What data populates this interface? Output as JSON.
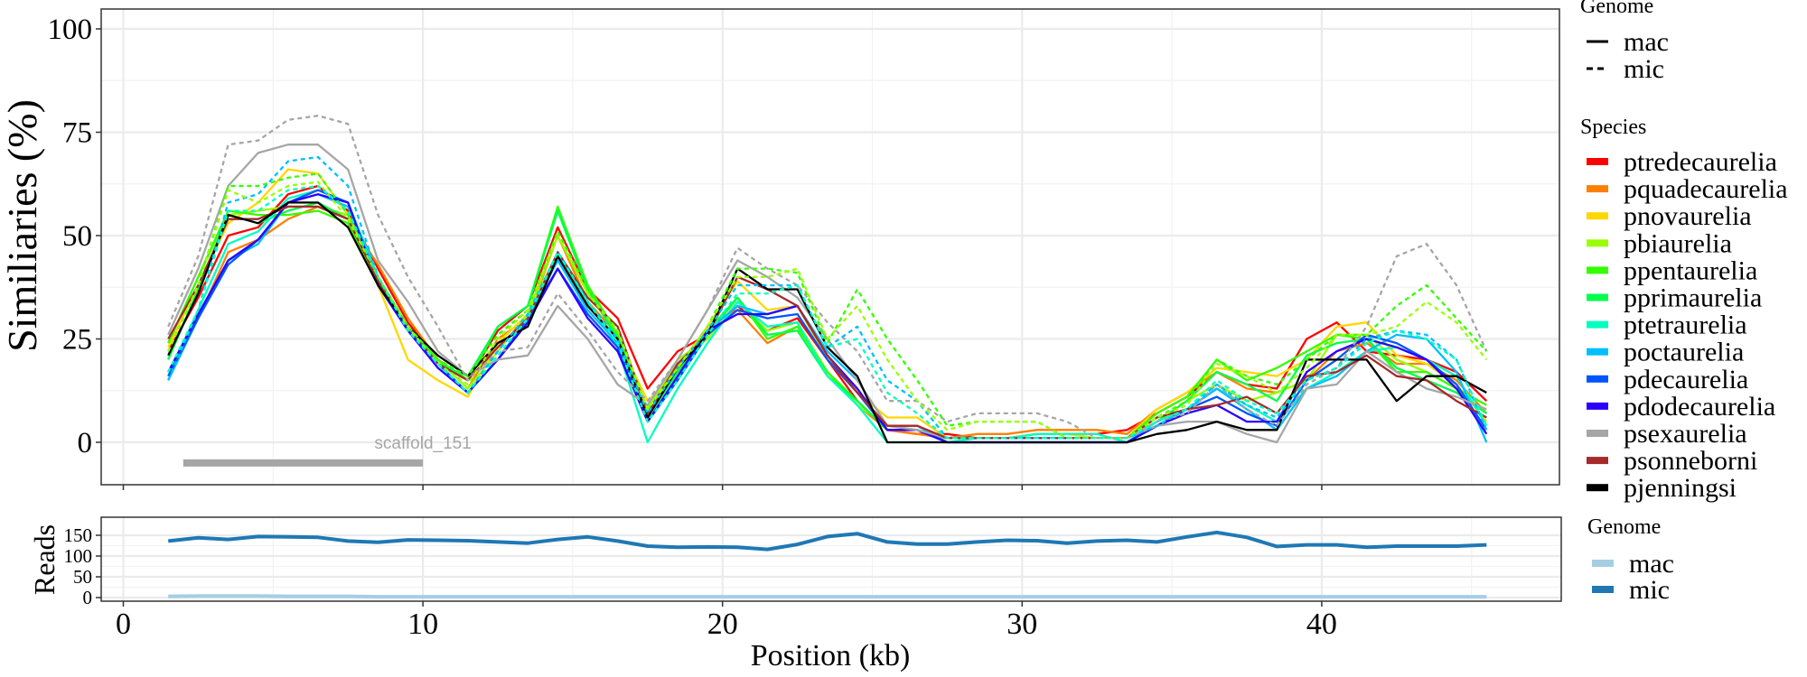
{
  "chart_data": [
    {
      "type": "line",
      "title": "",
      "xlabel": "Position (kb)",
      "ylabel": "Similiaries (%)",
      "xlim": [
        -1,
        48
      ],
      "ylim": [
        -10,
        105
      ],
      "x_ticks": [
        "0",
        "10",
        "20",
        "30",
        "40"
      ],
      "y_ticks": [
        "0",
        "25",
        "50",
        "75",
        "100"
      ],
      "grid": true,
      "x": [
        1.5,
        2.5,
        3.5,
        4.5,
        5.5,
        6.5,
        7.5,
        8.5,
        9.5,
        10.5,
        11.5,
        12.5,
        13.5,
        14.5,
        15.5,
        16.5,
        17.5,
        18.5,
        19.5,
        20.5,
        21.5,
        22.5,
        23.5,
        24.5,
        25.5,
        26.5,
        27.5,
        28.5,
        29.5,
        30.5,
        31.5,
        32.5,
        33.5,
        34.5,
        35.5,
        36.5,
        37.5,
        38.5,
        39.5,
        40.5,
        41.5,
        42.5,
        43.5,
        44.5,
        45.5
      ],
      "annotation": {
        "label": "scaffold_151",
        "start": 2,
        "end": 10,
        "y": -5
      },
      "legend_genome": {
        "title": "Genome",
        "items": [
          {
            "label": "mac",
            "style": "solid"
          },
          {
            "label": "mic",
            "style": "dashed"
          }
        ]
      },
      "legend_species": {
        "title": "Species",
        "placement": "right"
      },
      "series": [
        {
          "name": "ptredecaurelia",
          "color": "#FF0000",
          "genome": "mac",
          "values": [
            22,
            35,
            50,
            52,
            60,
            62,
            56,
            42,
            29,
            20,
            15,
            27,
            33,
            52,
            37,
            30,
            13,
            22,
            26,
            33,
            27,
            30,
            20,
            10,
            3,
            2,
            2,
            1,
            1,
            2,
            2,
            2,
            3,
            7,
            11,
            17,
            14,
            13,
            25,
            29,
            22,
            21,
            20,
            17,
            10
          ]
        },
        {
          "name": "pquadecaurelia",
          "color": "#FF7F00",
          "genome": "mac",
          "values": [
            17,
            30,
            46,
            49,
            54,
            57,
            54,
            43,
            30,
            20,
            13,
            25,
            30,
            50,
            34,
            26,
            8,
            18,
            28,
            32,
            24,
            28,
            17,
            9,
            3,
            2,
            1,
            2,
            2,
            3,
            3,
            3,
            2,
            8,
            12,
            17,
            13,
            12,
            15,
            22,
            24,
            19,
            19,
            15,
            7
          ]
        },
        {
          "name": "pnovaurelia",
          "color": "#FFD700",
          "genome": "mac",
          "values": [
            23,
            38,
            53,
            58,
            66,
            65,
            55,
            38,
            20,
            15,
            11,
            24,
            31,
            46,
            33,
            25,
            10,
            17,
            28,
            39,
            32,
            33,
            20,
            12,
            6,
            6,
            1,
            1,
            1,
            2,
            2,
            1,
            1,
            8,
            12,
            18,
            17,
            16,
            20,
            28,
            29,
            21,
            19,
            14,
            5
          ]
        },
        {
          "name": "pbiaurelia",
          "color": "#99FF00",
          "genome": "mac",
          "values": [
            24,
            40,
            55,
            56,
            57,
            57,
            55,
            40,
            28,
            20,
            13,
            22,
            31,
            50,
            36,
            26,
            8,
            20,
            25,
            34,
            27,
            29,
            17,
            9,
            4,
            3,
            1,
            1,
            1,
            1,
            1,
            1,
            1,
            5,
            10,
            14,
            10,
            12,
            15,
            26,
            26,
            20,
            17,
            13,
            7
          ]
        },
        {
          "name": "ppentaurelia",
          "color": "#33FF00",
          "genome": "mac",
          "values": [
            24,
            40,
            56,
            55,
            55,
            56,
            53,
            39,
            28,
            20,
            15,
            28,
            33,
            57,
            38,
            26,
            6,
            18,
            27,
            35,
            25,
            28,
            17,
            10,
            3,
            3,
            1,
            1,
            1,
            1,
            1,
            1,
            1,
            7,
            11,
            20,
            15,
            18,
            22,
            26,
            25,
            17,
            17,
            13,
            9
          ]
        },
        {
          "name": "pprimaurelia",
          "color": "#00FF4D",
          "genome": "mac",
          "values": [
            20,
            37,
            55,
            53,
            56,
            58,
            54,
            39,
            28,
            19,
            16,
            28,
            33,
            56,
            37,
            25,
            6,
            17,
            26,
            35,
            26,
            27,
            16,
            10,
            3,
            3,
            1,
            1,
            1,
            1,
            1,
            1,
            1,
            5,
            10,
            17,
            14,
            10,
            21,
            24,
            25,
            18,
            15,
            12,
            7
          ]
        },
        {
          "name": "ptetraurelia",
          "color": "#00FFC0",
          "genome": "mac",
          "values": [
            16,
            32,
            48,
            51,
            59,
            61,
            58,
            40,
            28,
            19,
            12,
            20,
            29,
            45,
            34,
            23,
            0,
            13,
            24,
            34,
            28,
            29,
            16,
            9,
            0,
            0,
            0,
            1,
            1,
            2,
            2,
            2,
            0,
            5,
            8,
            13,
            9,
            5,
            13,
            17,
            22,
            23,
            20,
            16,
            4
          ]
        },
        {
          "name": "poctaurelia",
          "color": "#00BFFF",
          "genome": "mac",
          "values": [
            15,
            30,
            44,
            48,
            58,
            60,
            57,
            40,
            27,
            19,
            12,
            20,
            30,
            44,
            32,
            24,
            5,
            15,
            27,
            33,
            31,
            33,
            22,
            15,
            4,
            4,
            0,
            0,
            0,
            0,
            0,
            0,
            0,
            4,
            8,
            13,
            8,
            3,
            13,
            16,
            22,
            26,
            25,
            17,
            0
          ]
        },
        {
          "name": "pdecaurelia",
          "color": "#0055FF",
          "genome": "mac",
          "values": [
            16,
            30,
            43,
            49,
            58,
            61,
            58,
            38,
            27,
            19,
            12,
            20,
            30,
            42,
            31,
            23,
            5,
            15,
            26,
            32,
            30,
            31,
            20,
            12,
            3,
            3,
            0,
            0,
            0,
            0,
            0,
            0,
            0,
            4,
            8,
            11,
            7,
            4,
            15,
            20,
            26,
            24,
            20,
            14,
            3
          ]
        },
        {
          "name": "pdodecaurelia",
          "color": "#2B00FF",
          "genome": "mac",
          "values": [
            17,
            31,
            44,
            49,
            58,
            60,
            58,
            38,
            27,
            18,
            12,
            20,
            29,
            42,
            30,
            22,
            5,
            16,
            27,
            31,
            31,
            33,
            21,
            13,
            3,
            3,
            0,
            0,
            0,
            0,
            0,
            0,
            0,
            4,
            7,
            9,
            5,
            5,
            17,
            22,
            25,
            23,
            20,
            13,
            2
          ]
        },
        {
          "name": "psexaurelia",
          "color": "#A6A6A6",
          "genome": "mac",
          "values": [
            26,
            42,
            62,
            70,
            72,
            72,
            66,
            44,
            34,
            22,
            16,
            20,
            21,
            33,
            25,
            14,
            9,
            20,
            32,
            44,
            40,
            35,
            25,
            15,
            4,
            3,
            1,
            1,
            1,
            1,
            1,
            1,
            1,
            4,
            5,
            5,
            2,
            0,
            13,
            14,
            22,
            17,
            13,
            11,
            8
          ]
        },
        {
          "name": "psonneborni",
          "color": "#A52A2A",
          "genome": "mac",
          "values": [
            25,
            38,
            54,
            54,
            57,
            57,
            54,
            39,
            28,
            19,
            15,
            23,
            30,
            46,
            35,
            28,
            7,
            19,
            26,
            40,
            37,
            33,
            21,
            12,
            4,
            4,
            1,
            1,
            1,
            1,
            1,
            1,
            1,
            6,
            8,
            9,
            11,
            7,
            16,
            17,
            21,
            16,
            15,
            10,
            6
          ]
        },
        {
          "name": "pjenningsi",
          "color": "#000000",
          "genome": "mac",
          "values": [
            21,
            36,
            55,
            53,
            58,
            58,
            52,
            38,
            28,
            21,
            16,
            24,
            28,
            45,
            33,
            25,
            6,
            18,
            26,
            42,
            37,
            37,
            23,
            16,
            0,
            0,
            0,
            0,
            0,
            0,
            0,
            0,
            0,
            2,
            3,
            5,
            3,
            3,
            20,
            20,
            20,
            10,
            16,
            16,
            12
          ]
        },
        {
          "name": "psexaurelia",
          "color": "#A6A6A6",
          "genome": "mic",
          "values": [
            28,
            45,
            72,
            73,
            78,
            79,
            77,
            55,
            40,
            28,
            15,
            22,
            23,
            36,
            27,
            17,
            10,
            20,
            32,
            47,
            42,
            38,
            29,
            22,
            10,
            10,
            5,
            7,
            7,
            7,
            5,
            1,
            1,
            5,
            7,
            14,
            8,
            4,
            14,
            18,
            28,
            45,
            48,
            38,
            22
          ]
        },
        {
          "name": "poctaurelia",
          "color": "#00BFFF",
          "genome": "mic",
          "values": [
            15,
            32,
            58,
            60,
            68,
            69,
            62,
            40,
            28,
            19,
            12,
            22,
            31,
            46,
            34,
            25,
            7,
            18,
            27,
            38,
            38,
            38,
            23,
            28,
            15,
            10,
            1,
            1,
            1,
            1,
            1,
            1,
            1,
            4,
            8,
            14,
            9,
            6,
            15,
            18,
            25,
            27,
            26,
            20,
            3
          ]
        },
        {
          "name": "ppentaurelia",
          "color": "#33FF00",
          "genome": "mic",
          "values": [
            22,
            38,
            62,
            62,
            64,
            65,
            55,
            40,
            28,
            20,
            16,
            26,
            32,
            51,
            37,
            27,
            8,
            18,
            28,
            42,
            42,
            41,
            24,
            37,
            25,
            15,
            4,
            5,
            5,
            5,
            1,
            1,
            1,
            6,
            10,
            20,
            16,
            14,
            20,
            26,
            26,
            33,
            38,
            30,
            22
          ]
        },
        {
          "name": "pbiaurelia",
          "color": "#99FF00",
          "genome": "mic",
          "values": [
            22,
            38,
            61,
            58,
            62,
            63,
            54,
            40,
            28,
            19,
            14,
            25,
            32,
            50,
            36,
            27,
            8,
            18,
            28,
            40,
            40,
            42,
            25,
            33,
            20,
            10,
            3,
            5,
            5,
            5,
            1,
            1,
            1,
            6,
            9,
            19,
            16,
            12,
            18,
            26,
            26,
            28,
            34,
            29,
            20
          ]
        },
        {
          "name": "ptetraurelia",
          "color": "#00FFC0",
          "genome": "mic",
          "values": [
            17,
            32,
            56,
            56,
            61,
            62,
            56,
            40,
            27,
            19,
            12,
            21,
            30,
            46,
            34,
            24,
            5,
            15,
            26,
            36,
            36,
            38,
            23,
            25,
            12,
            7,
            1,
            1,
            1,
            1,
            1,
            1,
            1,
            5,
            8,
            15,
            10,
            7,
            15,
            18,
            24,
            27,
            25,
            20,
            4
          ]
        }
      ]
    },
    {
      "type": "line",
      "xlabel": "Position (kb)",
      "ylabel": "Reads",
      "xlim": [
        -1,
        48
      ],
      "ylim": [
        -5,
        165
      ],
      "x_ticks": [
        "0",
        "10",
        "20",
        "30",
        "40"
      ],
      "y_ticks": [
        "0",
        "50",
        "100",
        "150"
      ],
      "grid": true,
      "x": [
        1.5,
        2.5,
        3.5,
        4.5,
        5.5,
        6.5,
        7.5,
        8.5,
        9.5,
        10.5,
        11.5,
        12.5,
        13.5,
        14.5,
        15.5,
        16.5,
        17.5,
        18.5,
        19.5,
        20.5,
        21.5,
        22.5,
        23.5,
        24.5,
        25.5,
        26.5,
        27.5,
        28.5,
        29.5,
        30.5,
        31.5,
        32.5,
        33.5,
        34.5,
        35.5,
        36.5,
        37.5,
        38.5,
        39.5,
        40.5,
        41.5,
        42.5,
        43.5,
        44.5,
        45.5
      ],
      "legend": {
        "title": "Genome",
        "placement": "right"
      },
      "series": [
        {
          "name": "mac",
          "color": "#A6CEE3",
          "values": [
            3,
            4,
            4,
            4,
            3,
            3,
            3,
            2,
            2,
            2,
            2,
            2,
            2,
            2,
            2,
            2,
            2,
            2,
            2,
            2,
            2,
            2,
            2,
            2,
            2,
            2,
            2,
            2,
            2,
            2,
            2,
            2,
            2,
            2,
            2,
            2,
            2,
            2,
            2,
            2,
            2,
            2,
            2,
            2,
            2
          ]
        },
        {
          "name": "mic",
          "color": "#1F78B4",
          "values": [
            136,
            144,
            140,
            147,
            146,
            145,
            136,
            133,
            139,
            138,
            137,
            134,
            131,
            140,
            146,
            136,
            124,
            121,
            122,
            121,
            116,
            128,
            147,
            154,
            134,
            129,
            129,
            134,
            138,
            137,
            131,
            136,
            138,
            134,
            146,
            157,
            145,
            123,
            127,
            127,
            121,
            124,
            124,
            124,
            127
          ]
        }
      ]
    }
  ]
}
